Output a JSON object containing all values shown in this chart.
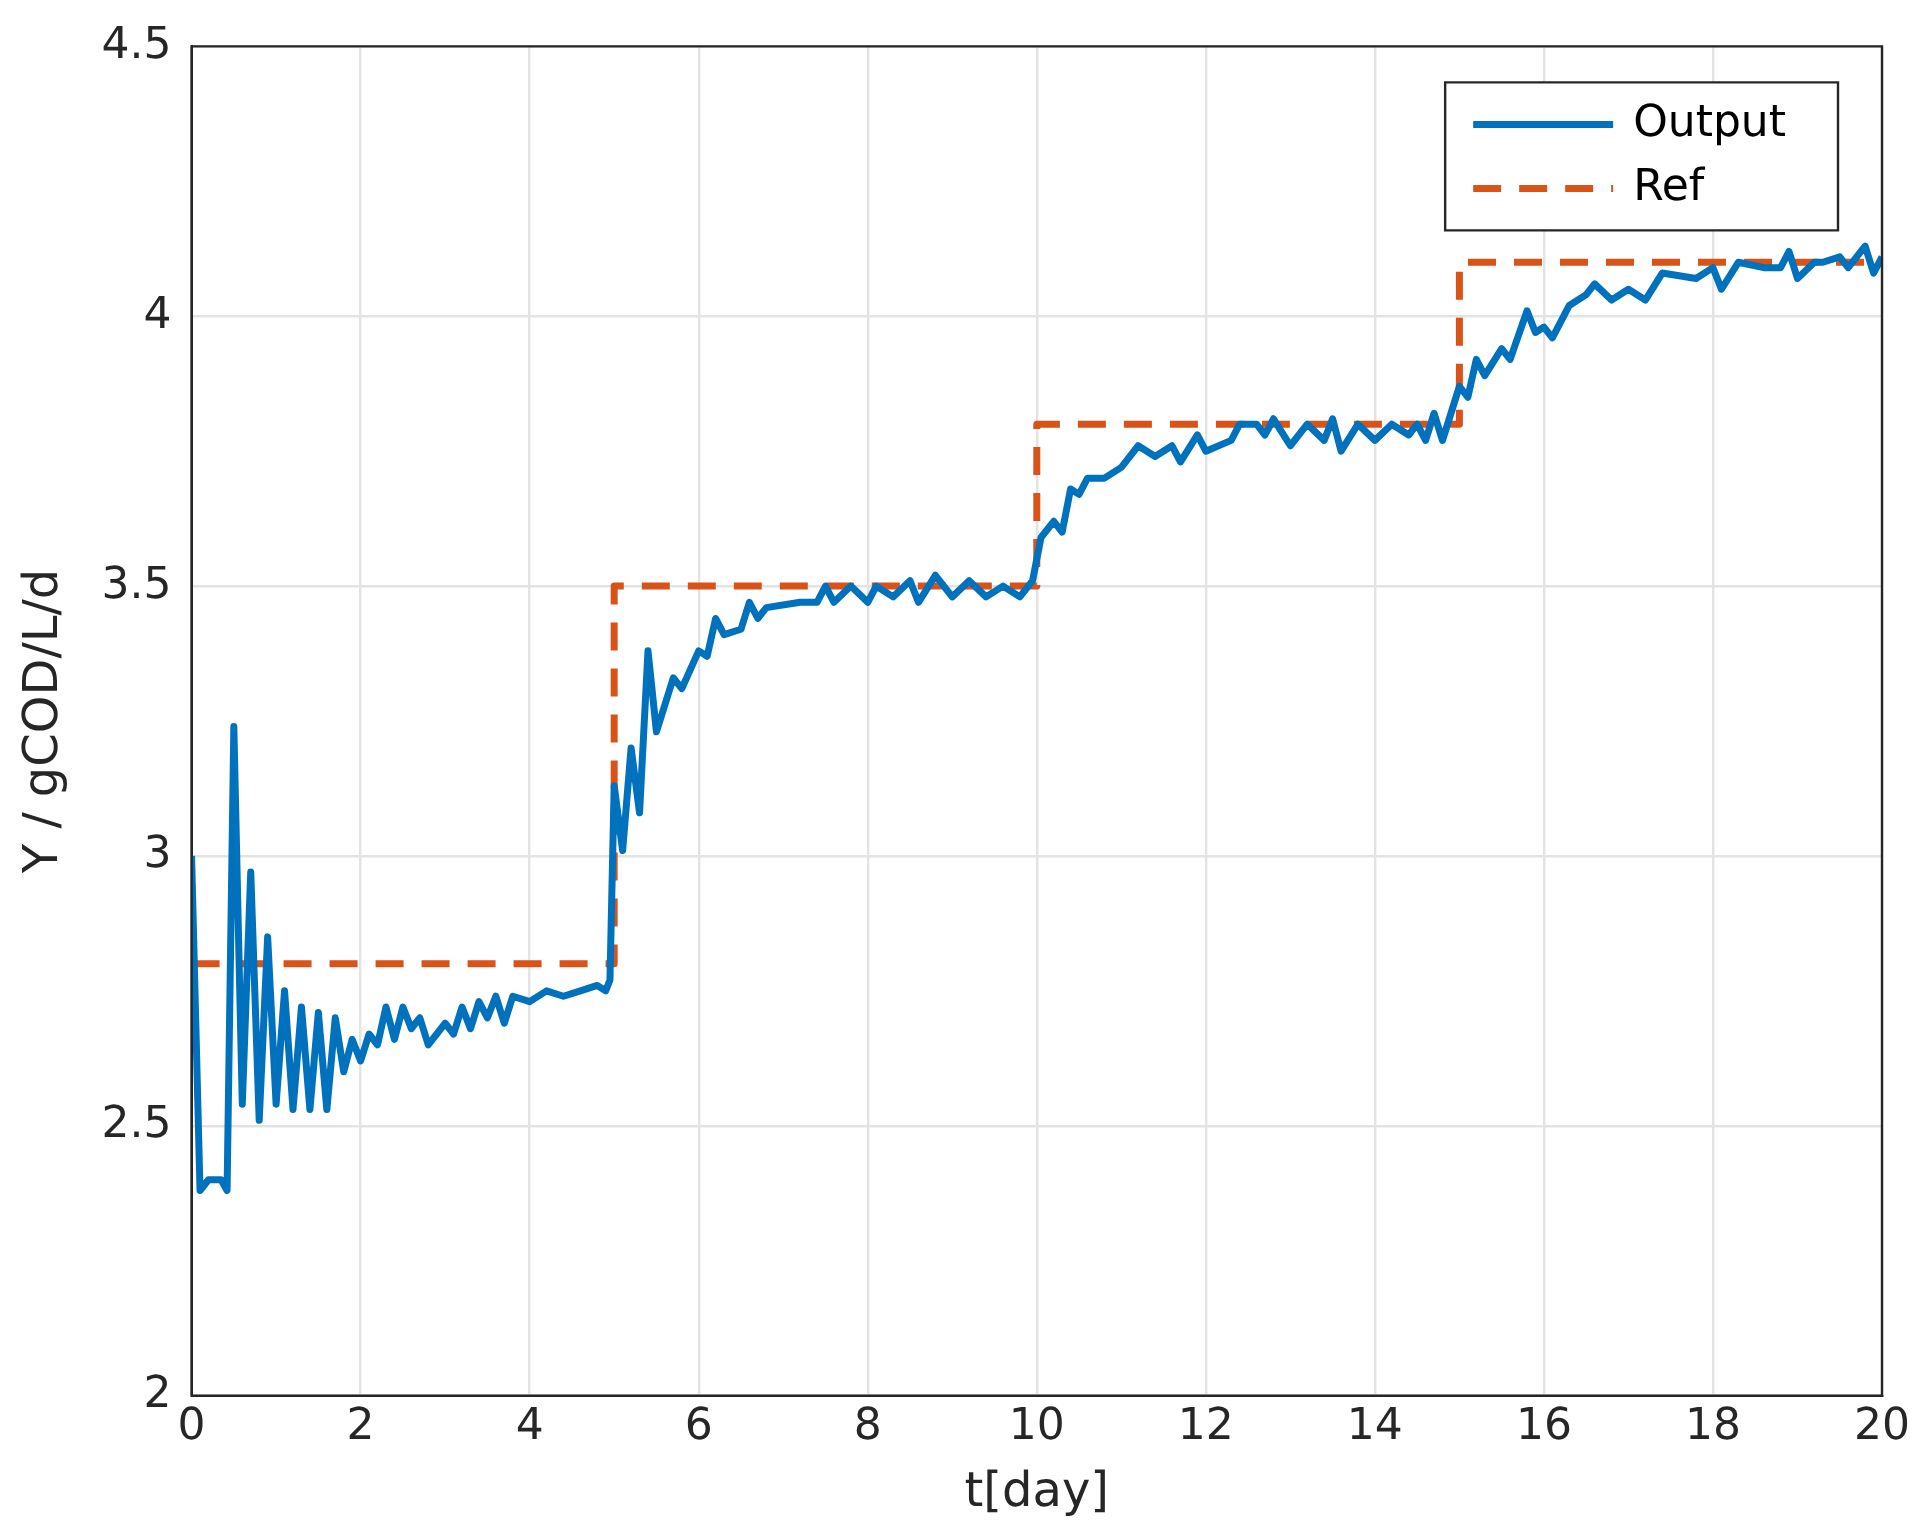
{
  "chart_data": {
    "type": "line",
    "xlabel": "t[day]",
    "ylabel": "Y / gCOD/L/d",
    "xlim": [
      0,
      20
    ],
    "xticks": [
      0,
      2,
      4,
      6,
      8,
      10,
      12,
      14,
      16,
      18,
      20
    ],
    "ylim": [
      2,
      4.5
    ],
    "yticks": [
      2,
      2.5,
      3,
      3.5,
      4,
      4.5
    ],
    "grid": true,
    "legend": "top right",
    "marker": "none",
    "series": [
      {
        "name": "Output",
        "color": "#0072bd",
        "line_style": "solid",
        "x": [
          0,
          0.1,
          0.2,
          0.35,
          0.42,
          0.5,
          0.6,
          0.7,
          0.8,
          0.9,
          1.0,
          1.1,
          1.2,
          1.3,
          1.4,
          1.5,
          1.6,
          1.7,
          1.8,
          1.9,
          2.0,
          2.1,
          2.2,
          2.3,
          2.4,
          2.5,
          2.6,
          2.7,
          2.8,
          3.0,
          3.1,
          3.2,
          3.3,
          3.4,
          3.5,
          3.6,
          3.7,
          3.8,
          4.0,
          4.2,
          4.4,
          4.6,
          4.8,
          4.9,
          4.95,
          5.0,
          5.1,
          5.2,
          5.3,
          5.4,
          5.5,
          5.7,
          5.8,
          6.0,
          6.1,
          6.2,
          6.3,
          6.5,
          6.6,
          6.7,
          6.8,
          7.2,
          7.4,
          7.5,
          7.6,
          7.8,
          8.0,
          8.1,
          8.3,
          8.5,
          8.6,
          8.8,
          9.0,
          9.2,
          9.4,
          9.6,
          9.8,
          9.95,
          10.05,
          10.2,
          10.3,
          10.4,
          10.5,
          10.6,
          10.8,
          11.0,
          11.2,
          11.4,
          11.6,
          11.7,
          11.9,
          12.0,
          12.3,
          12.4,
          12.6,
          12.7,
          12.8,
          13.0,
          13.2,
          13.4,
          13.5,
          13.6,
          13.8,
          14.0,
          14.2,
          14.4,
          14.5,
          14.6,
          14.7,
          14.8,
          15.0,
          15.1,
          15.2,
          15.3,
          15.5,
          15.6,
          15.8,
          15.9,
          16.0,
          16.1,
          16.3,
          16.5,
          16.6,
          16.8,
          17.0,
          17.2,
          17.4,
          17.8,
          18.0,
          18.1,
          18.3,
          18.6,
          18.8,
          18.9,
          19.0,
          19.2,
          19.3,
          19.5,
          19.6,
          19.8,
          19.9,
          20.0
        ],
        "values": [
          3.0,
          2.38,
          2.4,
          2.4,
          2.38,
          3.24,
          2.54,
          2.97,
          2.51,
          2.85,
          2.54,
          2.75,
          2.53,
          2.72,
          2.53,
          2.71,
          2.53,
          2.7,
          2.6,
          2.66,
          2.62,
          2.67,
          2.65,
          2.72,
          2.66,
          2.72,
          2.68,
          2.7,
          2.65,
          2.69,
          2.67,
          2.72,
          2.68,
          2.73,
          2.7,
          2.74,
          2.69,
          2.74,
          2.73,
          2.75,
          2.74,
          2.75,
          2.76,
          2.75,
          2.77,
          3.13,
          3.01,
          3.2,
          3.08,
          3.38,
          3.23,
          3.33,
          3.31,
          3.38,
          3.37,
          3.44,
          3.41,
          3.42,
          3.47,
          3.44,
          3.46,
          3.47,
          3.47,
          3.5,
          3.47,
          3.5,
          3.47,
          3.5,
          3.48,
          3.51,
          3.47,
          3.52,
          3.48,
          3.51,
          3.48,
          3.5,
          3.48,
          3.51,
          3.59,
          3.62,
          3.6,
          3.68,
          3.67,
          3.7,
          3.7,
          3.72,
          3.76,
          3.74,
          3.76,
          3.73,
          3.78,
          3.75,
          3.77,
          3.8,
          3.8,
          3.78,
          3.81,
          3.76,
          3.8,
          3.77,
          3.81,
          3.75,
          3.8,
          3.77,
          3.8,
          3.78,
          3.8,
          3.77,
          3.82,
          3.77,
          3.87,
          3.85,
          3.92,
          3.89,
          3.94,
          3.92,
          4.01,
          3.97,
          3.98,
          3.96,
          4.02,
          4.04,
          4.06,
          4.03,
          4.05,
          4.03,
          4.08,
          4.07,
          4.09,
          4.05,
          4.1,
          4.09,
          4.09,
          4.12,
          4.07,
          4.1,
          4.1,
          4.11,
          4.09,
          4.13,
          4.08,
          4.11
        ]
      },
      {
        "name": "Ref",
        "type": "step",
        "color": "#d95319",
        "line_style": "dashed",
        "x": [
          0,
          5,
          10,
          15,
          20
        ],
        "values": [
          2.8,
          3.5,
          3.8,
          4.1,
          4.1
        ]
      }
    ]
  }
}
